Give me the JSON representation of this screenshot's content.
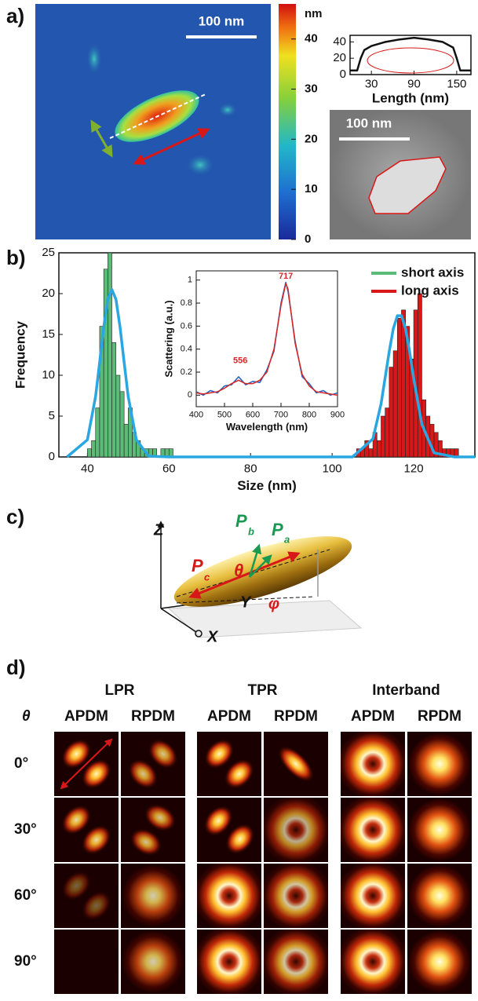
{
  "panel_labels": [
    "a)",
    "b)",
    "c)",
    "d)"
  ],
  "panel_a": {
    "scale_bars": [
      "100 nm",
      "100 nm"
    ],
    "colorbar": {
      "label": "nm",
      "lim": [
        0,
        47
      ],
      "ticks": [
        0,
        10,
        20,
        30,
        40
      ]
    }
  },
  "chart_data": [
    {
      "type": "histogram",
      "xlabel": "Size (nm)",
      "ylabel": "Frequency",
      "xlim": [
        33,
        135
      ],
      "xticks": [
        40,
        60,
        80,
        100,
        120
      ],
      "ylim": [
        0,
        25
      ],
      "yticks": [
        0,
        5,
        10,
        15,
        20,
        25
      ],
      "legend": "upper right",
      "series": [
        {
          "name": "short axis",
          "color": "#5dbb78",
          "bins": [
            40,
            41,
            42,
            43,
            44,
            45,
            46,
            47,
            48,
            49,
            50,
            51,
            52,
            53,
            54,
            55,
            56,
            57,
            58,
            59,
            60,
            61
          ],
          "values": [
            1,
            2,
            6,
            16,
            23,
            25,
            14,
            10,
            8,
            4,
            6,
            3,
            2,
            1,
            1,
            1,
            1,
            0,
            1,
            1,
            1
          ]
        },
        {
          "name": "long axis",
          "color": "#d81818",
          "bins": [
            106,
            107,
            108,
            109,
            110,
            111,
            112,
            113,
            114,
            115,
            116,
            117,
            118,
            119,
            120,
            121,
            122,
            123,
            124,
            125,
            126,
            127,
            128,
            129,
            130,
            131
          ],
          "values": [
            1,
            1,
            2,
            1,
            3,
            2,
            5,
            6,
            11,
            13,
            17,
            18,
            16,
            12,
            18,
            20,
            7,
            5,
            4,
            3,
            2,
            1,
            1,
            1,
            1
          ]
        }
      ],
      "fit_lines": [
        {
          "color": "#2aa7e0",
          "x": [
            35,
            40,
            42,
            43,
            44,
            45,
            46,
            47,
            48,
            49,
            50,
            52,
            55,
            60,
            100,
            105,
            110,
            112,
            114,
            115,
            116,
            117,
            118,
            119,
            120,
            122,
            125,
            130,
            135
          ],
          "values": [
            0,
            2.1,
            7.4,
            11.6,
            15.9,
            19.3,
            20.5,
            19.3,
            15.9,
            11.6,
            7.4,
            2.1,
            0.1,
            0,
            0,
            0,
            2.2,
            6.5,
            12.9,
            15.7,
            17.3,
            17.3,
            15.7,
            12.9,
            9.6,
            4,
            0.5,
            0,
            0
          ]
        }
      ]
    },
    {
      "type": "line",
      "xlabel": "Wavelength (nm)",
      "ylabel": "Scattering (a.u.)",
      "xlim": [
        400,
        900
      ],
      "xticks": [
        400,
        500,
        600,
        700,
        800,
        900
      ],
      "ylim": [
        -0.1,
        1.08
      ],
      "yticks": [
        0,
        0.2,
        0.4,
        0.6,
        0.8,
        1
      ],
      "annotations": [
        "556",
        "717"
      ],
      "x": [
        400,
        425,
        450,
        475,
        500,
        525,
        550,
        575,
        600,
        625,
        650,
        675,
        700,
        717,
        725,
        750,
        775,
        800,
        825,
        850,
        875,
        900
      ],
      "series": [
        {
          "color": "#1f5fbf",
          "values": [
            0.03,
            0.0,
            0.04,
            0.02,
            0.08,
            0.09,
            0.16,
            0.09,
            0.12,
            0.11,
            0.22,
            0.38,
            0.8,
            0.98,
            0.9,
            0.47,
            0.16,
            0.1,
            0.02,
            0.04,
            0.0,
            0.02
          ]
        },
        {
          "color": "#d62728",
          "values": [
            0.02,
            0.01,
            0.02,
            0.03,
            0.06,
            0.1,
            0.13,
            0.1,
            0.1,
            0.13,
            0.2,
            0.4,
            0.78,
            0.97,
            0.92,
            0.45,
            0.18,
            0.08,
            0.03,
            0.02,
            0.01,
            0
          ]
        }
      ]
    },
    {
      "type": "line",
      "xlabel": "Length (nm)",
      "xlim": [
        0,
        170
      ],
      "xticks": [
        30,
        90,
        150
      ],
      "ylim": [
        0,
        48
      ],
      "yticks": [
        0,
        20,
        40
      ],
      "x": [
        0,
        10,
        15,
        20,
        30,
        50,
        70,
        90,
        110,
        130,
        145,
        150,
        155,
        170
      ],
      "series": [
        {
          "color": "#111111",
          "values": [
            5,
            5,
            20,
            30,
            35,
            40,
            43,
            45,
            43,
            40,
            33,
            20,
            5,
            5
          ]
        }
      ]
    }
  ],
  "panel_c": {
    "labels": [
      "Z",
      "Y",
      "X",
      "P",
      "b",
      "P",
      "a",
      "P",
      "c",
      "θ",
      "φ"
    ]
  },
  "panel_d": {
    "groups": [
      "LPR",
      "TPR",
      "Interband"
    ],
    "columns": [
      "APDM",
      "RPDM",
      "APDM",
      "RPDM",
      "APDM",
      "RPDM"
    ],
    "row_title": "θ",
    "rows": [
      "0°",
      "30°",
      "60°",
      "90°"
    ]
  }
}
